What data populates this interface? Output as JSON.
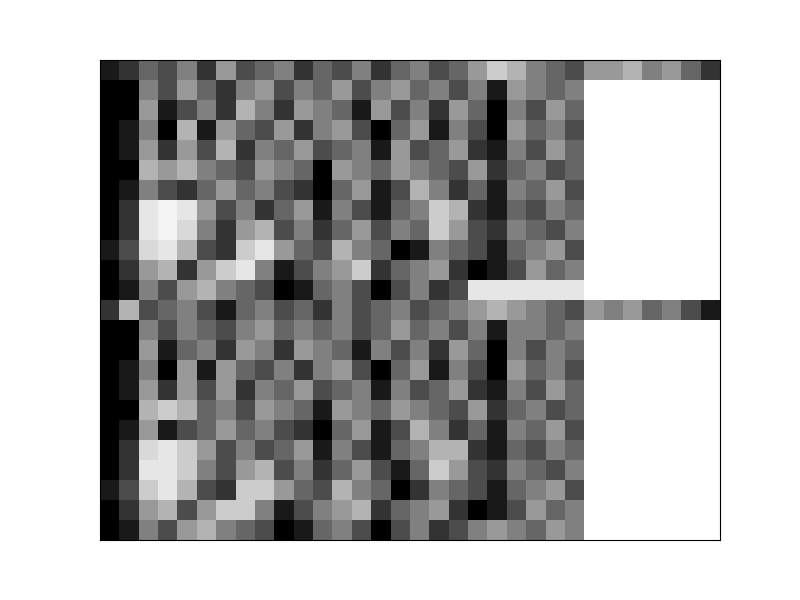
{
  "chart_data": {
    "type": "heatmap",
    "color": "gray",
    "tick_labels": false,
    "cells": [
      [
        0.1,
        0.2,
        0.4,
        0.3,
        0.5,
        0.2,
        0.6,
        0.3,
        0.4,
        0.5,
        0.2,
        0.4,
        0.3,
        0.5,
        0.2,
        0.4,
        0.5,
        0.3,
        0.4,
        0.6,
        0.8,
        0.7,
        0.5,
        0.4,
        0.3,
        0.6,
        0.6,
        0.7,
        0.5,
        0.6,
        0.4,
        0.2
      ],
      [
        0,
        0,
        0.5,
        0.3,
        0.6,
        0.4,
        0.2,
        0.5,
        0.6,
        0.3,
        0.5,
        0.4,
        0.6,
        0.3,
        0.5,
        0.6,
        0.4,
        0.5,
        0.3,
        0.5,
        0.1,
        0.6,
        0.5,
        0.4,
        0.5,
        1,
        1,
        1,
        1,
        1,
        1,
        1
      ],
      [
        0,
        0,
        0.6,
        0.1,
        0.3,
        0.5,
        0.2,
        0.7,
        0.5,
        0.2,
        0.6,
        0.5,
        0.4,
        0.1,
        0.6,
        0.3,
        0.5,
        0.2,
        0.6,
        0.4,
        0,
        0.5,
        0.3,
        0.6,
        0.4,
        1,
        1,
        1,
        1,
        1,
        1,
        1
      ],
      [
        0,
        0.1,
        0.5,
        0,
        0.7,
        0.1,
        0.6,
        0.4,
        0.3,
        0.6,
        0.2,
        0.5,
        0.6,
        0.3,
        0,
        0.4,
        0.6,
        0.1,
        0.5,
        0.3,
        0,
        0.6,
        0.4,
        0.5,
        0.3,
        1,
        1,
        1,
        1,
        1,
        1,
        1
      ],
      [
        0,
        0.1,
        0.6,
        0.2,
        0.6,
        0.3,
        0.7,
        0.2,
        0.5,
        0.4,
        0.6,
        0.3,
        0.4,
        0.5,
        0.1,
        0.6,
        0.3,
        0.4,
        0.6,
        0.2,
        0.1,
        0.5,
        0.3,
        0.6,
        0.4,
        1,
        1,
        1,
        1,
        1,
        1,
        1
      ],
      [
        0,
        0,
        0.7,
        0.6,
        0.7,
        0.5,
        0.4,
        0.3,
        0.6,
        0.5,
        0.4,
        0,
        0.6,
        0.5,
        0.4,
        0.6,
        0.5,
        0.4,
        0.3,
        0.6,
        0.2,
        0.4,
        0.5,
        0.3,
        0.4,
        1,
        1,
        1,
        1,
        1,
        1,
        1
      ],
      [
        0,
        0.1,
        0.5,
        0.3,
        0.2,
        0.4,
        0.6,
        0.4,
        0.5,
        0.3,
        0.2,
        0,
        0.4,
        0.6,
        0.1,
        0.3,
        0.7,
        0.5,
        0.2,
        0.4,
        0.1,
        0.5,
        0.4,
        0.6,
        0.3,
        1,
        1,
        1,
        1,
        1,
        1,
        1
      ],
      [
        0,
        0.2,
        0.9,
        0.95,
        0.9,
        0.6,
        0.3,
        0.5,
        0.2,
        0.4,
        0.6,
        0.1,
        0.5,
        0.3,
        0.1,
        0.4,
        0.5,
        0.8,
        0.7,
        0.2,
        0.1,
        0.4,
        0.3,
        0.5,
        0.4,
        1,
        1,
        1,
        1,
        1,
        1,
        1
      ],
      [
        0,
        0.2,
        0.9,
        0.95,
        0.85,
        0.5,
        0.2,
        0.6,
        0.7,
        0.3,
        0.5,
        0.2,
        0.4,
        0.6,
        0.3,
        0.5,
        0.4,
        0.8,
        0.6,
        0.3,
        0.2,
        0.5,
        0.4,
        0.3,
        0.5,
        1,
        1,
        1,
        1,
        1,
        1,
        1
      ],
      [
        0.1,
        0.3,
        0.85,
        0.9,
        0.7,
        0.3,
        0.2,
        0.8,
        0.9,
        0.6,
        0.4,
        0.3,
        0.7,
        0.5,
        0.4,
        0,
        0.1,
        0.5,
        0.4,
        0.3,
        0.1,
        0.4,
        0.5,
        0.6,
        0.3,
        1,
        1,
        1,
        1,
        1,
        1,
        1
      ],
      [
        0,
        0.2,
        0.6,
        0.7,
        0.2,
        0.6,
        0.8,
        0.9,
        0.5,
        0.1,
        0.3,
        0.5,
        0.6,
        0.8,
        0.2,
        0.4,
        0.5,
        0.6,
        0.2,
        0,
        0.1,
        0.3,
        0.6,
        0.4,
        0.5,
        1,
        1,
        1,
        1,
        1,
        1,
        1
      ],
      [
        0,
        0.1,
        0.5,
        0.3,
        0.6,
        0.7,
        0.5,
        0.4,
        0.3,
        0,
        0.1,
        0.4,
        0.5,
        0.3,
        0,
        0.3,
        0.5,
        0.2,
        0.3,
        0.9,
        0.9,
        0.9,
        0.9,
        0.9,
        0.9,
        1,
        1,
        1,
        1,
        1,
        1,
        1
      ],
      [
        0.2,
        0.7,
        0.3,
        0.4,
        0.5,
        0.3,
        0.1,
        0.4,
        0.5,
        0.3,
        0.4,
        0.2,
        0.5,
        0.3,
        0.4,
        0.5,
        0.3,
        0.4,
        0.5,
        0.6,
        0.7,
        0.6,
        0.5,
        0.4,
        0.3,
        0.6,
        0.5,
        0.6,
        0.4,
        0.5,
        0.3,
        0.1
      ],
      [
        0,
        0,
        0.5,
        0.3,
        0.5,
        0.4,
        0.3,
        0.5,
        0.6,
        0.4,
        0.5,
        0.4,
        0.5,
        0.3,
        0.4,
        0.6,
        0.4,
        0.5,
        0.3,
        0.5,
        0.1,
        0.5,
        0.5,
        0.4,
        0.5,
        1,
        1,
        1,
        1,
        1,
        1,
        1
      ],
      [
        0,
        0,
        0.6,
        0.1,
        0.4,
        0.5,
        0.2,
        0.6,
        0.5,
        0.2,
        0.6,
        0.5,
        0.4,
        0.1,
        0.5,
        0.3,
        0.5,
        0.2,
        0.6,
        0.4,
        0,
        0.5,
        0.3,
        0.5,
        0.4,
        1,
        1,
        1,
        1,
        1,
        1,
        1
      ],
      [
        0,
        0.1,
        0.5,
        0,
        0.6,
        0.1,
        0.6,
        0.4,
        0.3,
        0.5,
        0.2,
        0.5,
        0.6,
        0.3,
        0,
        0.4,
        0.6,
        0.1,
        0.5,
        0.3,
        0,
        0.6,
        0.4,
        0.5,
        0.3,
        1,
        1,
        1,
        1,
        1,
        1,
        1
      ],
      [
        0,
        0.1,
        0.6,
        0.2,
        0.6,
        0.3,
        0.6,
        0.2,
        0.5,
        0.4,
        0.6,
        0.3,
        0.4,
        0.5,
        0.1,
        0.5,
        0.3,
        0.4,
        0.6,
        0.2,
        0.1,
        0.5,
        0.3,
        0.6,
        0.4,
        1,
        1,
        1,
        1,
        1,
        1,
        1
      ],
      [
        0,
        0,
        0.7,
        0.8,
        0.7,
        0.4,
        0.5,
        0.3,
        0.6,
        0.5,
        0.4,
        0.1,
        0.6,
        0.5,
        0.4,
        0.6,
        0.5,
        0.4,
        0.3,
        0.6,
        0.2,
        0.4,
        0.5,
        0.3,
        0.4,
        1,
        1,
        1,
        1,
        1,
        1,
        1
      ],
      [
        0,
        0.1,
        0.6,
        0.1,
        0.3,
        0.4,
        0.6,
        0.4,
        0.5,
        0.3,
        0.2,
        0,
        0.4,
        0.6,
        0.1,
        0.3,
        0.7,
        0.5,
        0.2,
        0.4,
        0.1,
        0.5,
        0.4,
        0.6,
        0.3,
        1,
        1,
        1,
        1,
        1,
        1,
        1
      ],
      [
        0,
        0.2,
        0.85,
        0.9,
        0.8,
        0.6,
        0.3,
        0.5,
        0.3,
        0.4,
        0.6,
        0.1,
        0.5,
        0.3,
        0.1,
        0.4,
        0.5,
        0.7,
        0.7,
        0.2,
        0.1,
        0.4,
        0.3,
        0.5,
        0.4,
        1,
        1,
        1,
        1,
        1,
        1,
        1
      ],
      [
        0,
        0.2,
        0.9,
        0.9,
        0.8,
        0.5,
        0.3,
        0.6,
        0.7,
        0.3,
        0.5,
        0.2,
        0.4,
        0.6,
        0.3,
        0.1,
        0.4,
        0.8,
        0.6,
        0.3,
        0.2,
        0.5,
        0.4,
        0.3,
        0.5,
        1,
        1,
        1,
        1,
        1,
        1,
        1
      ],
      [
        0.1,
        0.3,
        0.8,
        0.9,
        0.7,
        0.3,
        0.2,
        0.8,
        0.8,
        0.6,
        0.4,
        0.3,
        0.7,
        0.5,
        0.4,
        0,
        0.2,
        0.5,
        0.4,
        0.3,
        0.1,
        0.4,
        0.5,
        0.6,
        0.3,
        1,
        1,
        1,
        1,
        1,
        1,
        1
      ],
      [
        0,
        0.2,
        0.6,
        0.7,
        0.3,
        0.6,
        0.8,
        0.8,
        0.5,
        0.1,
        0.3,
        0.5,
        0.6,
        0.7,
        0.2,
        0.4,
        0.5,
        0.6,
        0.2,
        0,
        0.1,
        0.3,
        0.6,
        0.4,
        0.5,
        1,
        1,
        1,
        1,
        1,
        1,
        1
      ],
      [
        0,
        0.1,
        0.5,
        0.3,
        0.6,
        0.7,
        0.5,
        0.4,
        0.3,
        0,
        0.1,
        0.4,
        0.5,
        0.3,
        0,
        0.3,
        0.5,
        0.2,
        0.3,
        0.5,
        0.6,
        0.5,
        0.4,
        0.6,
        0.5,
        1,
        1,
        1,
        1,
        1,
        1,
        1
      ]
    ]
  }
}
